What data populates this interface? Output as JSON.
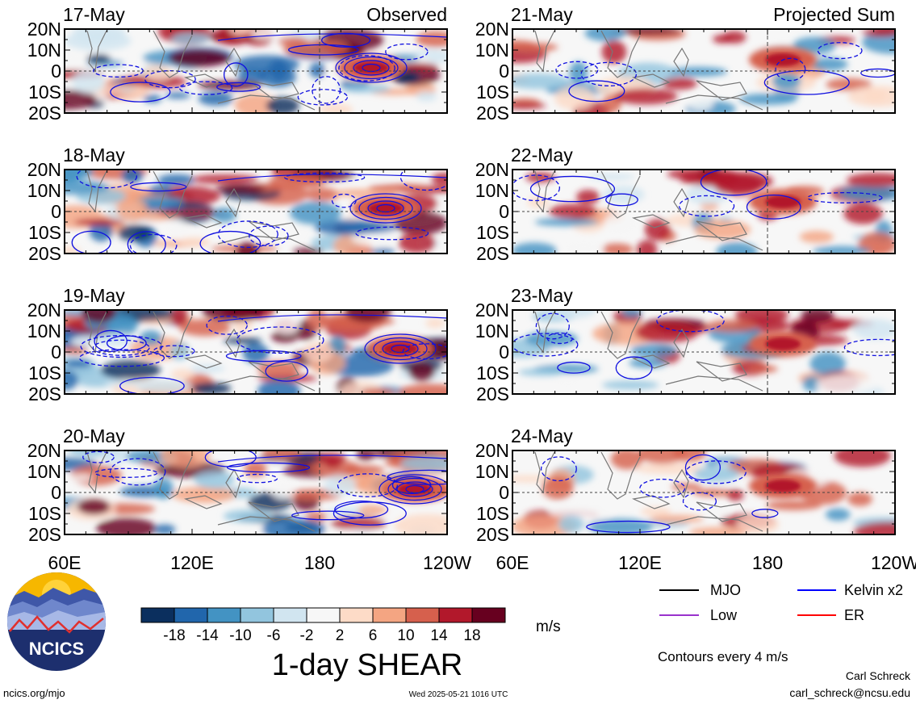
{
  "figure": {
    "title": "1-day SHEAR",
    "units": "m/s",
    "contour_note": "Contours every 4 m/s",
    "author": "Carl Schreck",
    "email": "carl_schreck@ncsu.edu",
    "site": "ncics.org/mjo",
    "timestamp": "Wed 2025-05-21 1016 UTC",
    "logo_text": "NCICS"
  },
  "columns": {
    "left_header": "Observed",
    "right_header": "Projected Sum"
  },
  "legend": [
    {
      "label": "MJO",
      "color": "#000000"
    },
    {
      "label": "Kelvin x2",
      "color": "#0000ff"
    },
    {
      "label": "Low",
      "color": "#9932cc"
    },
    {
      "label": "ER",
      "color": "#ff0000"
    }
  ],
  "colorbar": {
    "colors": [
      "#0b2f5e",
      "#2166ac",
      "#4393c3",
      "#92c5de",
      "#d1e5f0",
      "#f7f7f7",
      "#fddbc7",
      "#f4a582",
      "#d6604d",
      "#b2182b",
      "#67001f"
    ],
    "labels": [
      "-18",
      "-14",
      "-10",
      "-6",
      "-2",
      "2",
      "6",
      "10",
      "14",
      "18"
    ]
  },
  "chart_data": {
    "type": "heatmap",
    "panels": [
      {
        "date": "17-May",
        "kind": "observed"
      },
      {
        "date": "18-May",
        "kind": "observed"
      },
      {
        "date": "19-May",
        "kind": "observed"
      },
      {
        "date": "20-May",
        "kind": "observed"
      },
      {
        "date": "21-May",
        "kind": "projected"
      },
      {
        "date": "22-May",
        "kind": "projected"
      },
      {
        "date": "23-May",
        "kind": "projected"
      },
      {
        "date": "24-May",
        "kind": "projected"
      }
    ],
    "x_ticks": [
      "60E",
      "120E",
      "180",
      "120W"
    ],
    "y_ticks": [
      "20N",
      "10N",
      "0",
      "10S",
      "20S"
    ],
    "xlim": [
      60,
      240
    ],
    "ylim": [
      -20,
      20
    ],
    "colorbar_levels": [
      -18,
      -14,
      -10,
      -6,
      -2,
      2,
      6,
      10,
      14,
      18
    ]
  }
}
